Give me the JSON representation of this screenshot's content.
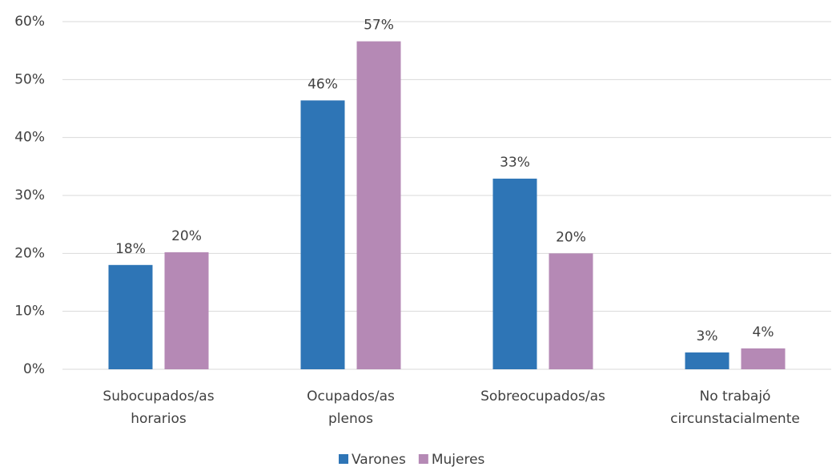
{
  "chart_data": {
    "type": "bar",
    "categories": [
      "Subocupados/as\nhorarios",
      "Ocupados/as\nplenos",
      "Sobreocupados/as",
      "No trabajó\ncircunstacialmente"
    ],
    "series": [
      {
        "name": "Varones",
        "color": "#2e75b6",
        "values": [
          18.0,
          46.4,
          32.9,
          2.9
        ],
        "value_labels": [
          "18%",
          "46%",
          "33%",
          "3%"
        ]
      },
      {
        "name": "Mujeres",
        "color": "#b589b5",
        "values": [
          20.2,
          56.6,
          20.0,
          3.6
        ],
        "value_labels": [
          "20%",
          "57%",
          "20%",
          "4%"
        ]
      }
    ],
    "ylim": [
      0,
      60
    ],
    "yticks": [
      {
        "value": 0,
        "label": "0%"
      },
      {
        "value": 10,
        "label": "10%"
      },
      {
        "value": 20,
        "label": "20%"
      },
      {
        "value": 30,
        "label": "30%"
      },
      {
        "value": 40,
        "label": "40%"
      },
      {
        "value": 50,
        "label": "50%"
      },
      {
        "value": 60,
        "label": "60%"
      }
    ],
    "grid": true,
    "legend": "bottom"
  }
}
